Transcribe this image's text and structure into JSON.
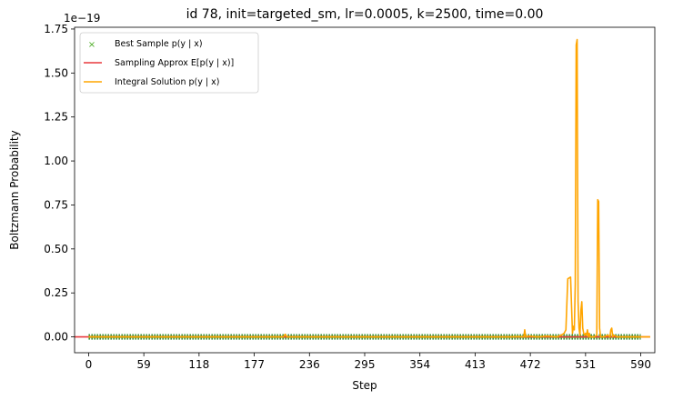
{
  "chart_data": {
    "type": "line",
    "title": "id 78, init=targeted_sm, lr=0.0005, k=2500, time=0.00",
    "xlabel": "Step",
    "ylabel": "Boltzmann Probability",
    "y_offset_label": "1e−19",
    "xlim": [
      -15,
      605
    ],
    "ylim": [
      -0.09,
      1.76
    ],
    "y_scale_factor": "1e-19",
    "grid": false,
    "legend_position": "top-left",
    "x_ticks": [
      0,
      59,
      118,
      177,
      236,
      295,
      354,
      413,
      472,
      531,
      590
    ],
    "y_ticks": [
      0.0,
      0.25,
      0.5,
      0.75,
      1.0,
      1.25,
      1.5,
      1.75
    ],
    "y_tick_labels": [
      "0.00",
      "0.25",
      "0.50",
      "0.75",
      "1.00",
      "1.25",
      "1.50",
      "1.75"
    ],
    "series": [
      {
        "name": "Best Sample p(y | x)",
        "legend_label": "Best Sample p(y | x)",
        "kind": "markers",
        "color": "#4dac26",
        "x_range": [
          0,
          590
        ],
        "values_by_band": [
          0.01,
          -0.01
        ]
      },
      {
        "name": "Sampling Approx E[p(y | x)]",
        "legend_label": "Sampling Approx E[p(y | x)]",
        "kind": "line",
        "color": "#e8383d",
        "x": [
          -15,
          600
        ],
        "values": [
          0.0,
          0.0
        ]
      },
      {
        "name": "Integral Solution p(y | x)",
        "legend_label": "Integral Solution p(y | x)",
        "kind": "line",
        "color": "#ffa500",
        "x": [
          0,
          100,
          200,
          208,
          210,
          212,
          300,
          400,
          450,
          460,
          465,
          466,
          467,
          470,
          480,
          490,
          500,
          505,
          508,
          510,
          512,
          515,
          517,
          518,
          519,
          520,
          521,
          522,
          523,
          524,
          525,
          526,
          527,
          528,
          529,
          530,
          531,
          532,
          533,
          534,
          535,
          536,
          540,
          543,
          544,
          545,
          546,
          547,
          550,
          555,
          557,
          558,
          559,
          560,
          561,
          565,
          570,
          580,
          590,
          600
        ],
        "values": [
          0.0,
          0.0,
          0.0,
          0.0,
          0.015,
          0.0,
          0.0,
          0.0,
          0.0,
          0.002,
          0.0,
          0.04,
          0.0,
          0.005,
          0.0,
          0.005,
          0.0,
          0.01,
          0.02,
          0.04,
          0.33,
          0.34,
          0.02,
          0.06,
          0.04,
          0.3,
          1.66,
          1.69,
          0.2,
          0.05,
          0.01,
          0.15,
          0.2,
          0.05,
          0.02,
          0.01,
          0.02,
          0.01,
          0.04,
          0.0,
          0.02,
          0.0,
          0.0,
          0.01,
          0.78,
          0.77,
          0.05,
          0.0,
          0.0,
          0.01,
          0.0,
          0.04,
          0.05,
          0.0,
          0.01,
          0.0,
          0.0,
          0.0,
          0.0,
          0.0
        ]
      }
    ]
  }
}
